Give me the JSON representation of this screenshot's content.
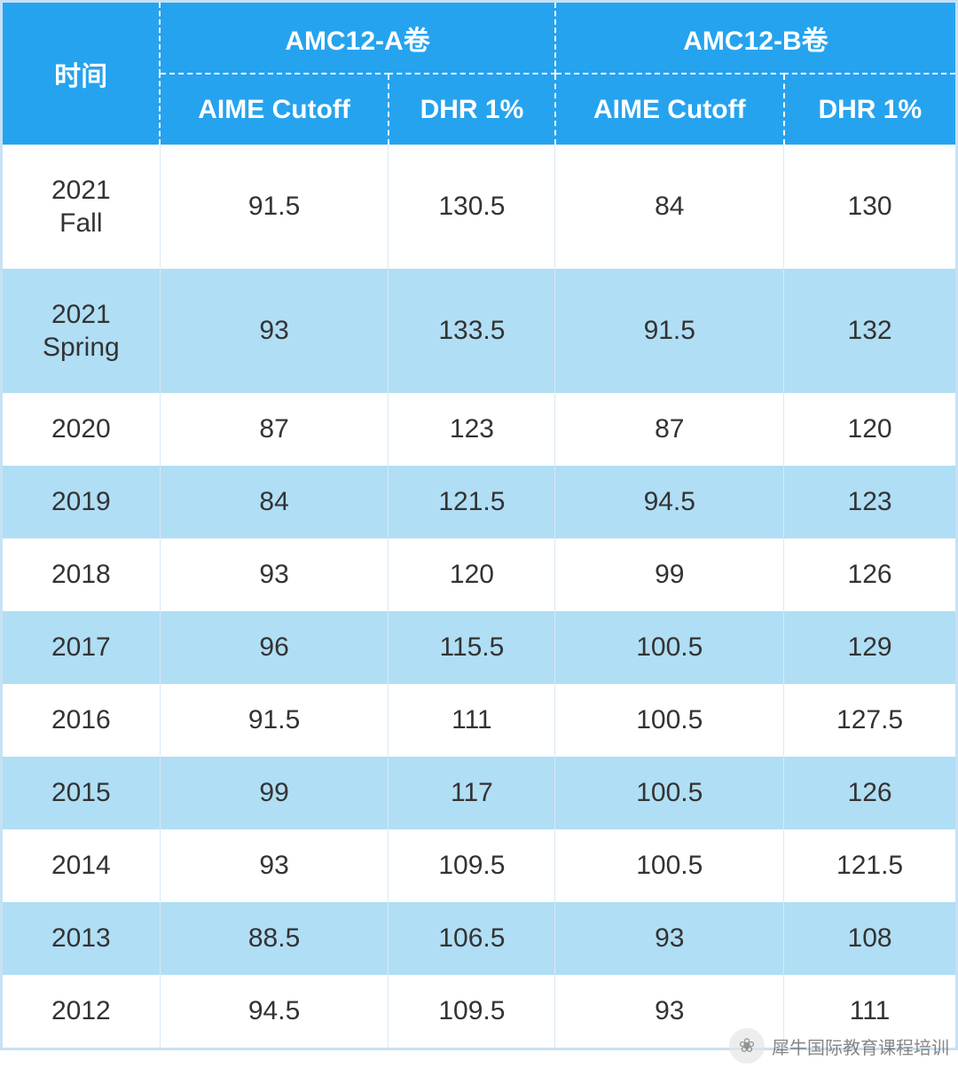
{
  "table": {
    "type": "table",
    "header": {
      "time_label": "时间",
      "group_a": "AMC12-A卷",
      "group_b": "AMC12-B卷",
      "sub_labels": [
        "AIME Cutoff",
        "DHR 1%",
        "AIME Cutoff",
        "DHR 1%"
      ]
    },
    "columns": [
      "time",
      "a_aime",
      "a_dhr",
      "b_aime",
      "b_dhr"
    ],
    "col_widths_pct": [
      16.5,
      24,
      17.5,
      24,
      18
    ],
    "header_bg": "#26a3ef",
    "header_fg": "#ffffff",
    "header_fontsize": 30,
    "header_divider_style": "dashed",
    "header_divider_color": "#ffffff",
    "row_alt_bg": "#b0def5",
    "row_plain_bg": "#ffffff",
    "outer_border_color": "#c7e1f4",
    "cell_fg": "#333333",
    "cell_fontsize": 30,
    "cell_divider_color": "#d9e9f6",
    "header_row_height": 80,
    "big_row_height": 140,
    "normal_row_height": 82,
    "rows": [
      {
        "time_l1": "2021",
        "time_l2": "Fall",
        "a_aime": "91.5",
        "a_dhr": "130.5",
        "b_aime": "84",
        "b_dhr": "130",
        "big": true,
        "alt": false
      },
      {
        "time_l1": "2021",
        "time_l2": "Spring",
        "a_aime": "93",
        "a_dhr": "133.5",
        "b_aime": "91.5",
        "b_dhr": "132",
        "big": true,
        "alt": true
      },
      {
        "time_l1": "2020",
        "time_l2": "",
        "a_aime": "87",
        "a_dhr": "123",
        "b_aime": "87",
        "b_dhr": "120",
        "big": false,
        "alt": false
      },
      {
        "time_l1": "2019",
        "time_l2": "",
        "a_aime": "84",
        "a_dhr": "121.5",
        "b_aime": "94.5",
        "b_dhr": "123",
        "big": false,
        "alt": true
      },
      {
        "time_l1": "2018",
        "time_l2": "",
        "a_aime": "93",
        "a_dhr": "120",
        "b_aime": "99",
        "b_dhr": "126",
        "big": false,
        "alt": false
      },
      {
        "time_l1": "2017",
        "time_l2": "",
        "a_aime": "96",
        "a_dhr": "115.5",
        "b_aime": "100.5",
        "b_dhr": "129",
        "big": false,
        "alt": true
      },
      {
        "time_l1": "2016",
        "time_l2": "",
        "a_aime": "91.5",
        "a_dhr": "111",
        "b_aime": "100.5",
        "b_dhr": "127.5",
        "big": false,
        "alt": false
      },
      {
        "time_l1": "2015",
        "time_l2": "",
        "a_aime": "99",
        "a_dhr": "117",
        "b_aime": "100.5",
        "b_dhr": "126",
        "big": false,
        "alt": true
      },
      {
        "time_l1": "2014",
        "time_l2": "",
        "a_aime": "93",
        "a_dhr": "109.5",
        "b_aime": "100.5",
        "b_dhr": "121.5",
        "big": false,
        "alt": false
      },
      {
        "time_l1": "2013",
        "time_l2": "",
        "a_aime": "88.5",
        "a_dhr": "106.5",
        "b_aime": "93",
        "b_dhr": "108",
        "big": false,
        "alt": true
      },
      {
        "time_l1": "2012",
        "time_l2": "",
        "a_aime": "94.5",
        "a_dhr": "109.5",
        "b_aime": "93",
        "b_dhr": "111",
        "big": false,
        "alt": false
      }
    ]
  },
  "watermark": {
    "text": "犀牛国际教育课程培训",
    "icon_glyph": "❀",
    "fg": "#555555",
    "fontsize": 20
  }
}
